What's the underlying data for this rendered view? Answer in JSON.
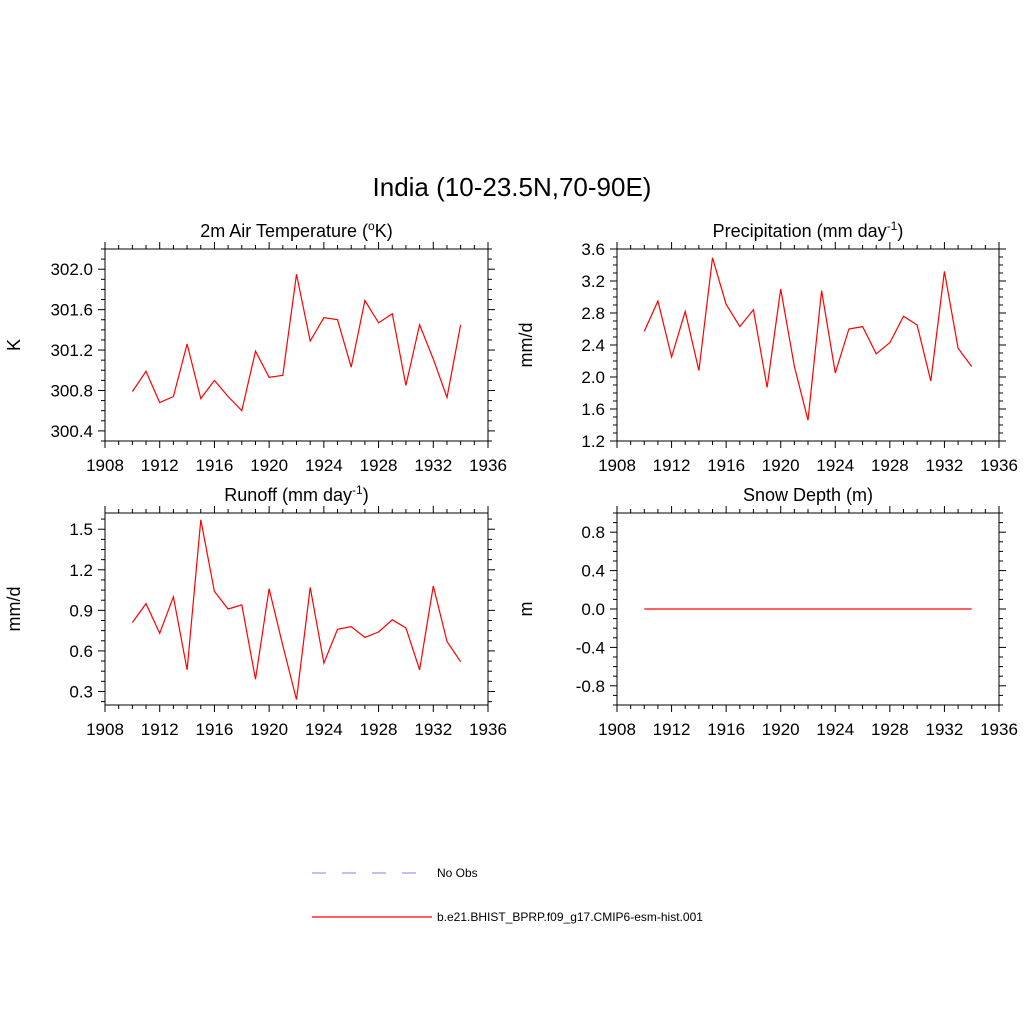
{
  "main_title": "India (10-23.5N,70-90E)",
  "colors": {
    "model_line": "#ff0000",
    "obs_line": "#9999ff",
    "axis": "#000000"
  },
  "legend": {
    "obs_label": "No Obs",
    "model_label": "b.e21.BHIST_BPRP.f09_g17.CMIP6-esm-hist.001"
  },
  "chart_data": [
    {
      "type": "line",
      "title": "2m Air Temperature (",
      "title_sup": "o",
      "title_suffix": "K)",
      "ylabel": "K",
      "xlim": [
        1908,
        1936
      ],
      "ylim": [
        300.3,
        302.2
      ],
      "xticks": [
        1908,
        1912,
        1916,
        1920,
        1924,
        1928,
        1932,
        1936
      ],
      "yticks": [
        300.4,
        300.8,
        301.2,
        301.6,
        302.0
      ],
      "ytick_labels": [
        "300.4",
        "300.8",
        "301.2",
        "301.6",
        "302.0"
      ],
      "x": [
        1910,
        1911,
        1912,
        1913,
        1914,
        1915,
        1916,
        1917,
        1918,
        1919,
        1920,
        1921,
        1922,
        1923,
        1924,
        1925,
        1926,
        1927,
        1928,
        1929,
        1930,
        1931,
        1932,
        1933,
        1934
      ],
      "series": [
        {
          "values": [
            300.79,
            300.99,
            300.68,
            300.74,
            301.26,
            300.72,
            300.9,
            300.74,
            300.6,
            301.19,
            300.93,
            300.95,
            301.95,
            301.29,
            301.52,
            301.5,
            301.03,
            301.69,
            301.47,
            301.56,
            300.85,
            301.45,
            301.11,
            300.73,
            301.45
          ]
        }
      ]
    },
    {
      "type": "line",
      "title": "Precipitation (mm day",
      "title_sup": "-1",
      "title_suffix": ")",
      "ylabel": "mm/d",
      "xlim": [
        1908,
        1936
      ],
      "ylim": [
        1.2,
        3.6
      ],
      "xticks": [
        1908,
        1912,
        1916,
        1920,
        1924,
        1928,
        1932,
        1936
      ],
      "yticks": [
        1.2,
        1.6,
        2.0,
        2.4,
        2.8,
        3.2,
        3.6
      ],
      "ytick_labels": [
        "1.2",
        "1.6",
        "2.0",
        "2.4",
        "2.8",
        "3.2",
        "3.6"
      ],
      "x": [
        1910,
        1911,
        1912,
        1913,
        1914,
        1915,
        1916,
        1917,
        1918,
        1919,
        1920,
        1921,
        1922,
        1923,
        1924,
        1925,
        1926,
        1927,
        1928,
        1929,
        1930,
        1931,
        1932,
        1933,
        1934
      ],
      "series": [
        {
          "values": [
            2.57,
            2.95,
            2.25,
            2.82,
            2.08,
            3.49,
            2.91,
            2.63,
            2.84,
            1.87,
            3.1,
            2.13,
            1.46,
            3.08,
            2.05,
            2.6,
            2.63,
            2.29,
            2.43,
            2.76,
            2.65,
            1.95,
            3.32,
            2.36,
            2.13
          ]
        }
      ]
    },
    {
      "type": "line",
      "title": "Runoff (mm day",
      "title_sup": "-1",
      "title_suffix": ")",
      "ylabel": "mm/d",
      "xlim": [
        1908,
        1936
      ],
      "ylim": [
        0.2,
        1.62
      ],
      "xticks": [
        1908,
        1912,
        1916,
        1920,
        1924,
        1928,
        1932,
        1936
      ],
      "yticks": [
        0.3,
        0.6,
        0.9,
        1.2,
        1.5
      ],
      "ytick_labels": [
        "0.3",
        "0.6",
        "0.9",
        "1.2",
        "1.5"
      ],
      "x": [
        1910,
        1911,
        1912,
        1913,
        1914,
        1915,
        1916,
        1917,
        1918,
        1919,
        1920,
        1921,
        1922,
        1923,
        1924,
        1925,
        1926,
        1927,
        1928,
        1929,
        1930,
        1931,
        1932,
        1933,
        1934
      ],
      "series": [
        {
          "values": [
            0.81,
            0.95,
            0.73,
            1.0,
            0.46,
            1.57,
            1.04,
            0.91,
            0.94,
            0.39,
            1.06,
            0.64,
            0.24,
            1.07,
            0.51,
            0.76,
            0.78,
            0.7,
            0.74,
            0.83,
            0.77,
            0.46,
            1.08,
            0.67,
            0.52
          ]
        }
      ]
    },
    {
      "type": "line",
      "title": "Snow Depth (m)",
      "title_sup": "",
      "title_suffix": "",
      "ylabel": "m",
      "xlim": [
        1908,
        1936
      ],
      "ylim": [
        -1.0,
        1.0
      ],
      "xticks": [
        1908,
        1912,
        1916,
        1920,
        1924,
        1928,
        1932,
        1936
      ],
      "yticks": [
        -0.8,
        -0.4,
        0.0,
        0.4,
        0.8
      ],
      "ytick_labels": [
        "-0.8",
        "-0.4",
        "0.0",
        "0.4",
        "0.8"
      ],
      "x": [
        1910,
        1934
      ],
      "series": [
        {
          "values": [
            0.0,
            0.0
          ]
        }
      ]
    }
  ]
}
